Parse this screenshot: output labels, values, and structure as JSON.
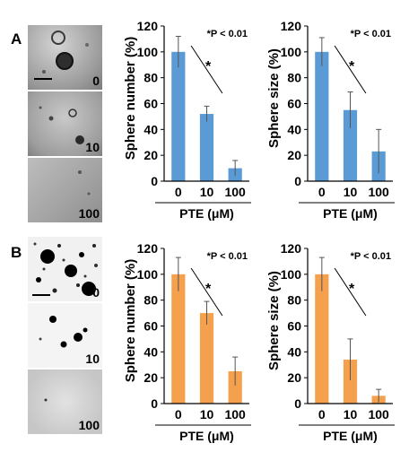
{
  "panel_labels": [
    "A",
    "B"
  ],
  "photo_labels": {
    "A": [
      "0",
      "10",
      "100"
    ],
    "B": [
      "0",
      "10",
      "100"
    ]
  },
  "colors": {
    "A": "#5b9bd5",
    "B": "#f4a04c",
    "error": "#555555"
  },
  "chart_data": [
    {
      "type": "bar",
      "panel": "A",
      "title": "",
      "annotation": "*P < 0.01",
      "significance_mark": "*",
      "xlabel": "PTE (μM)",
      "ylabel": "Sphere number (%)",
      "categories": [
        "0",
        "10",
        "100"
      ],
      "values": [
        100,
        52,
        10
      ],
      "errors": [
        12,
        6,
        6
      ],
      "ylim": [
        0,
        120
      ],
      "yticks": [
        0,
        20,
        40,
        60,
        80,
        100,
        120
      ],
      "grid": false
    },
    {
      "type": "bar",
      "panel": "A",
      "title": "",
      "annotation": "*P < 0.01",
      "significance_mark": "*",
      "xlabel": "PTE (μM)",
      "ylabel": "Sphere size  (%)",
      "categories": [
        "0",
        "10",
        "100"
      ],
      "values": [
        100,
        55,
        23
      ],
      "errors": [
        11,
        14,
        17
      ],
      "ylim": [
        0,
        120
      ],
      "yticks": [
        0,
        20,
        40,
        60,
        80,
        100,
        120
      ],
      "grid": false
    },
    {
      "type": "bar",
      "panel": "B",
      "title": "",
      "annotation": "*P < 0.01",
      "significance_mark": "*",
      "xlabel": "PTE (μM)",
      "ylabel": "Sphere number (%)",
      "categories": [
        "0",
        "10",
        "100"
      ],
      "values": [
        100,
        70,
        25
      ],
      "errors": [
        13,
        9,
        11
      ],
      "ylim": [
        0,
        120
      ],
      "yticks": [
        0,
        20,
        40,
        60,
        80,
        100,
        120
      ],
      "grid": false
    },
    {
      "type": "bar",
      "panel": "B",
      "title": "",
      "annotation": "*P < 0.01",
      "significance_mark": "*",
      "xlabel": "PTE (μM)",
      "ylabel": "Sphere size  (%)",
      "categories": [
        "0",
        "10",
        "100"
      ],
      "values": [
        100,
        34,
        6
      ],
      "errors": [
        13,
        16,
        5
      ],
      "ylim": [
        0,
        120
      ],
      "yticks": [
        0,
        20,
        40,
        60,
        80,
        100,
        120
      ],
      "grid": false
    }
  ]
}
